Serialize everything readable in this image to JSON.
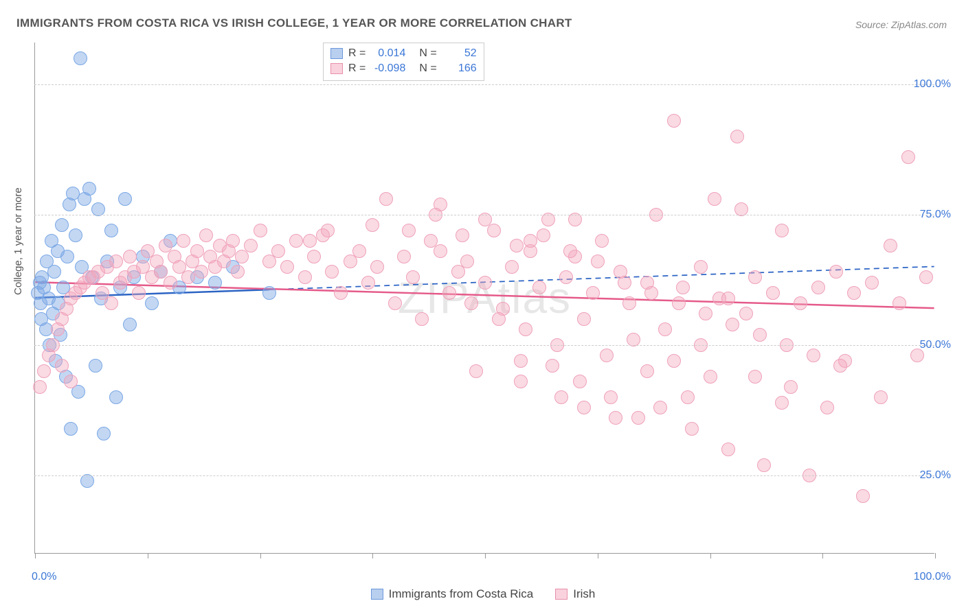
{
  "title": "IMMIGRANTS FROM COSTA RICA VS IRISH COLLEGE, 1 YEAR OR MORE CORRELATION CHART",
  "source": "Source: ZipAtlas.com",
  "watermark": "ZIPAtlas",
  "chart": {
    "type": "scatter",
    "ylabel": "College, 1 year or more",
    "xlim": [
      0,
      100
    ],
    "ylim": [
      10,
      108
    ],
    "xtick_percents": [
      0,
      12.5,
      25,
      37.5,
      50,
      62.5,
      75,
      87.5,
      100
    ],
    "ytick_labels": [
      {
        "v": 25,
        "t": "25.0%"
      },
      {
        "v": 50,
        "t": "50.0%"
      },
      {
        "v": 75,
        "t": "75.0%"
      },
      {
        "v": 100,
        "t": "100.0%"
      }
    ],
    "xaxis_end_labels": {
      "left": "0.0%",
      "right": "100.0%"
    },
    "grid_color": "#cccccc",
    "background_color": "#ffffff",
    "point_radius": 10,
    "series": [
      {
        "name": "Immigrants from Costa Rica",
        "color_fill": "rgba(122,167,229,0.45)",
        "color_stroke": "#7aa7e5",
        "swatch_fill": "#b9cfef",
        "swatch_border": "#6b98db",
        "R": "0.014",
        "N": "52",
        "trend": {
          "y_at_0": 59,
          "y_at_100": 65,
          "solid_until_x": 26,
          "color": "#2c64c4",
          "width": 2.5
        },
        "points": [
          [
            0.3,
            60
          ],
          [
            0.5,
            62
          ],
          [
            0.6,
            58
          ],
          [
            0.7,
            55
          ],
          [
            0.8,
            63
          ],
          [
            1.0,
            61
          ],
          [
            1.2,
            53
          ],
          [
            1.3,
            66
          ],
          [
            1.5,
            59
          ],
          [
            1.6,
            50
          ],
          [
            1.8,
            70
          ],
          [
            2.0,
            56
          ],
          [
            2.1,
            64
          ],
          [
            2.3,
            47
          ],
          [
            2.5,
            68
          ],
          [
            2.6,
            58
          ],
          [
            2.8,
            52
          ],
          [
            3.0,
            73
          ],
          [
            3.1,
            61
          ],
          [
            3.4,
            44
          ],
          [
            3.6,
            67
          ],
          [
            3.8,
            77
          ],
          [
            4.0,
            34
          ],
          [
            4.2,
            79
          ],
          [
            4.5,
            71
          ],
          [
            4.8,
            41
          ],
          [
            5.0,
            105
          ],
          [
            5.2,
            65
          ],
          [
            5.5,
            78
          ],
          [
            5.8,
            24
          ],
          [
            6.0,
            80
          ],
          [
            6.3,
            63
          ],
          [
            6.7,
            46
          ],
          [
            7.0,
            76
          ],
          [
            7.3,
            59
          ],
          [
            7.6,
            33
          ],
          [
            8.0,
            66
          ],
          [
            8.5,
            72
          ],
          [
            9.0,
            40
          ],
          [
            9.5,
            61
          ],
          [
            10.0,
            78
          ],
          [
            10.5,
            54
          ],
          [
            11.0,
            63
          ],
          [
            12.0,
            67
          ],
          [
            13.0,
            58
          ],
          [
            14.0,
            64
          ],
          [
            15.0,
            70
          ],
          [
            16.0,
            61
          ],
          [
            18.0,
            63
          ],
          [
            20.0,
            62
          ],
          [
            22.0,
            65
          ],
          [
            26.0,
            60
          ]
        ]
      },
      {
        "name": "Irish",
        "color_fill": "rgba(244,166,189,0.42)",
        "color_stroke": "#efa1ba",
        "swatch_fill": "#f9d2de",
        "swatch_border": "#e88fa9",
        "R": "-0.098",
        "N": "166",
        "trend": {
          "y_at_0": 62,
          "y_at_100": 57,
          "solid_until_x": 100,
          "color": "#e55a8a",
          "width": 2.5
        },
        "points": [
          [
            0.5,
            42
          ],
          [
            1.0,
            45
          ],
          [
            1.5,
            48
          ],
          [
            2.0,
            50
          ],
          [
            2.5,
            53
          ],
          [
            3.0,
            55
          ],
          [
            3.5,
            57
          ],
          [
            4.0,
            59
          ],
          [
            4.5,
            60
          ],
          [
            5.0,
            61
          ],
          [
            5.5,
            62
          ],
          [
            6.0,
            63
          ],
          [
            6.5,
            63
          ],
          [
            7.0,
            64
          ],
          [
            7.5,
            60
          ],
          [
            8.0,
            65
          ],
          [
            8.5,
            58
          ],
          [
            9.0,
            66
          ],
          [
            9.5,
            62
          ],
          [
            10.0,
            63
          ],
          [
            10.5,
            67
          ],
          [
            11.0,
            64
          ],
          [
            11.5,
            60
          ],
          [
            12.0,
            65
          ],
          [
            12.5,
            68
          ],
          [
            13.0,
            63
          ],
          [
            13.5,
            66
          ],
          [
            14.0,
            64
          ],
          [
            14.5,
            69
          ],
          [
            15.0,
            62
          ],
          [
            15.5,
            67
          ],
          [
            16.0,
            65
          ],
          [
            16.5,
            70
          ],
          [
            17.0,
            63
          ],
          [
            17.5,
            66
          ],
          [
            18.0,
            68
          ],
          [
            18.5,
            64
          ],
          [
            19.0,
            71
          ],
          [
            19.5,
            67
          ],
          [
            20.0,
            65
          ],
          [
            20.5,
            69
          ],
          [
            21.0,
            66
          ],
          [
            21.5,
            68
          ],
          [
            22.0,
            70
          ],
          [
            22.5,
            64
          ],
          [
            23.0,
            67
          ],
          [
            24.0,
            69
          ],
          [
            25.0,
            72
          ],
          [
            26.0,
            66
          ],
          [
            27.0,
            68
          ],
          [
            28.0,
            65
          ],
          [
            29.0,
            70
          ],
          [
            30.0,
            63
          ],
          [
            31.0,
            67
          ],
          [
            32.0,
            71
          ],
          [
            33.0,
            64
          ],
          [
            34.0,
            60
          ],
          [
            35.0,
            66
          ],
          [
            36.0,
            68
          ],
          [
            37.0,
            62
          ],
          [
            38.0,
            65
          ],
          [
            39.0,
            78
          ],
          [
            40.0,
            58
          ],
          [
            41.0,
            67
          ],
          [
            42.0,
            63
          ],
          [
            43.0,
            55
          ],
          [
            44.0,
            70
          ],
          [
            45.0,
            77
          ],
          [
            46.0,
            60
          ],
          [
            47.0,
            64
          ],
          [
            48.0,
            66
          ],
          [
            49.0,
            45
          ],
          [
            50.0,
            62
          ],
          [
            51.0,
            72
          ],
          [
            52.0,
            57
          ],
          [
            53.0,
            65
          ],
          [
            54.0,
            43
          ],
          [
            55.0,
            68
          ],
          [
            56.0,
            61
          ],
          [
            57.0,
            74
          ],
          [
            58.0,
            50
          ],
          [
            59.0,
            63
          ],
          [
            60.0,
            67
          ],
          [
            61.0,
            55
          ],
          [
            62.0,
            60
          ],
          [
            63.0,
            70
          ],
          [
            64.0,
            40
          ],
          [
            65.0,
            64
          ],
          [
            66.0,
            58
          ],
          [
            67.0,
            36
          ],
          [
            68.0,
            62
          ],
          [
            69.0,
            75
          ],
          [
            70.0,
            53
          ],
          [
            71.0,
            93
          ],
          [
            72.0,
            61
          ],
          [
            73.0,
            34
          ],
          [
            74.0,
            65
          ],
          [
            75.0,
            44
          ],
          [
            76.0,
            59
          ],
          [
            77.0,
            30
          ],
          [
            78.0,
            90
          ],
          [
            79.0,
            56
          ],
          [
            80.0,
            63
          ],
          [
            81.0,
            27
          ],
          [
            82.0,
            60
          ],
          [
            83.0,
            72
          ],
          [
            84.0,
            42
          ],
          [
            85.0,
            58
          ],
          [
            86.0,
            25
          ],
          [
            87.0,
            61
          ],
          [
            88.0,
            38
          ],
          [
            89.0,
            64
          ],
          [
            90.0,
            47
          ],
          [
            91.0,
            60
          ],
          [
            92.0,
            21
          ],
          [
            93.0,
            62
          ],
          [
            94.0,
            40
          ],
          [
            95.0,
            69
          ],
          [
            96.0,
            58
          ],
          [
            97.0,
            86
          ],
          [
            98.0,
            48
          ],
          [
            99.0,
            63
          ],
          [
            3.0,
            46
          ],
          [
            4.0,
            43
          ],
          [
            37.5,
            73
          ],
          [
            41.5,
            72
          ],
          [
            44.5,
            75
          ],
          [
            47.5,
            71
          ],
          [
            30.5,
            70
          ],
          [
            32.5,
            72
          ],
          [
            53.5,
            69
          ],
          [
            56.5,
            71
          ],
          [
            59.5,
            68
          ],
          [
            62.5,
            66
          ],
          [
            65.5,
            62
          ],
          [
            68.5,
            60
          ],
          [
            71.5,
            58
          ],
          [
            74.5,
            56
          ],
          [
            77.5,
            54
          ],
          [
            80.5,
            52
          ],
          [
            83.5,
            50
          ],
          [
            86.5,
            48
          ],
          [
            89.5,
            46
          ],
          [
            48.5,
            58
          ],
          [
            51.5,
            55
          ],
          [
            54.5,
            53
          ],
          [
            57.5,
            46
          ],
          [
            60.5,
            43
          ],
          [
            63.5,
            48
          ],
          [
            66.5,
            51
          ],
          [
            69.5,
            38
          ],
          [
            72.5,
            40
          ],
          [
            75.5,
            78
          ],
          [
            78.5,
            76
          ],
          [
            55.0,
            70
          ],
          [
            60.0,
            74
          ],
          [
            50.0,
            74
          ],
          [
            45.0,
            68
          ],
          [
            54.0,
            47
          ],
          [
            58.5,
            40
          ],
          [
            61.0,
            38
          ],
          [
            64.5,
            36
          ],
          [
            68.0,
            45
          ],
          [
            71.0,
            47
          ],
          [
            74.0,
            50
          ],
          [
            77.0,
            59
          ],
          [
            80.0,
            44
          ],
          [
            83.0,
            39
          ]
        ]
      }
    ]
  },
  "legend_top": {
    "r_label": "R =",
    "n_label": "N ="
  }
}
